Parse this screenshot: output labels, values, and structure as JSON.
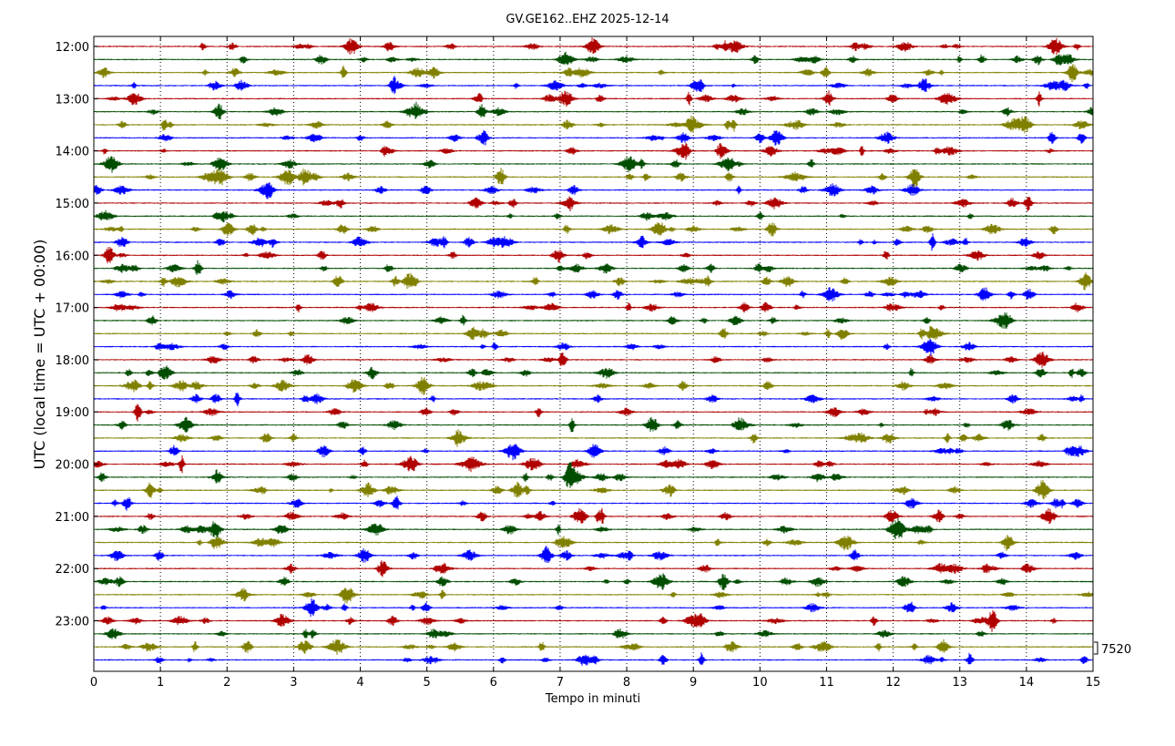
{
  "chart_data": {
    "type": "line",
    "title": "GV.GE162..EHZ 2025-12-14",
    "xlabel": "Tempo in minuti",
    "ylabel": "UTC (local time = UTC + 00:00)",
    "xlim": [
      0,
      15
    ],
    "x_ticks": [
      "0",
      "1",
      "2",
      "3",
      "4",
      "5",
      "6",
      "7",
      "8",
      "9",
      "10",
      "11",
      "12",
      "13",
      "14",
      "15"
    ],
    "y_tick_labels": [
      "12:00",
      "13:00",
      "14:00",
      "15:00",
      "16:00",
      "17:00",
      "18:00",
      "19:00",
      "20:00",
      "21:00",
      "22:00",
      "23:00"
    ],
    "trace_start": "12:00",
    "trace_interval_minutes": 15,
    "trace_count": 48,
    "trace_colors": [
      "#b00000",
      "#004d00",
      "#808000",
      "#0000ff"
    ],
    "vertical_grid": "dotted",
    "scale_label": "7520"
  }
}
